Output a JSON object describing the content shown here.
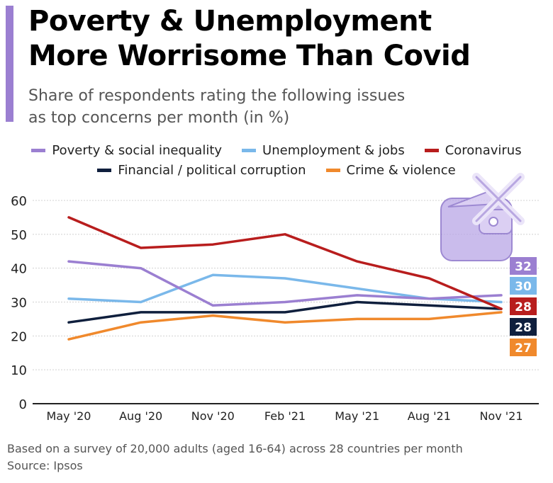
{
  "header": {
    "title_line1": "Poverty & Unemployment",
    "title_line2": "More Worrisome Than Covid",
    "subtitle_line1": "Share of respondents rating the following issues",
    "subtitle_line2": "as top concerns per month (in %)"
  },
  "footer": {
    "note": "Based on a survey of 20,000 adults (aged 16-64) across 28 countries per month",
    "source": "Source: Ipsos"
  },
  "colors": {
    "accent": "#9b7fd1",
    "grid": "#d0d0d0",
    "axis": "#222222"
  },
  "icon": "wallet-with-cross-icon",
  "chart_data": {
    "type": "line",
    "title": "Poverty & Unemployment More Worrisome Than Covid",
    "subtitle": "Share of respondents rating the following issues as top concerns per month (in %)",
    "xlabel": "",
    "ylabel": "",
    "categories": [
      "May '20",
      "Aug '20",
      "Nov '20",
      "Feb '21",
      "May '21",
      "Aug '21",
      "Nov '21"
    ],
    "ylim": [
      0,
      60
    ],
    "yticks": [
      0,
      10,
      20,
      30,
      40,
      50,
      60
    ],
    "grid": true,
    "legend_position": "top-center",
    "series": [
      {
        "name": "Poverty & social inequality",
        "color": "#9b7fd1",
        "values": [
          42,
          40,
          29,
          30,
          32,
          31,
          32
        ],
        "end_label": "32"
      },
      {
        "name": "Unemployment & jobs",
        "color": "#7ab8ea",
        "values": [
          31,
          30,
          38,
          37,
          34,
          31,
          30
        ],
        "end_label": "30"
      },
      {
        "name": "Coronavirus",
        "color": "#b81d1d",
        "values": [
          55,
          46,
          47,
          50,
          42,
          37,
          28
        ],
        "end_label": "28"
      },
      {
        "name": "Financial / political corruption",
        "color": "#0f1f3d",
        "values": [
          24,
          27,
          27,
          27,
          30,
          29,
          28
        ],
        "end_label": "28"
      },
      {
        "name": "Crime & violence",
        "color": "#f0892c",
        "values": [
          19,
          24,
          26,
          24,
          25,
          25,
          27
        ],
        "end_label": "27"
      }
    ]
  }
}
